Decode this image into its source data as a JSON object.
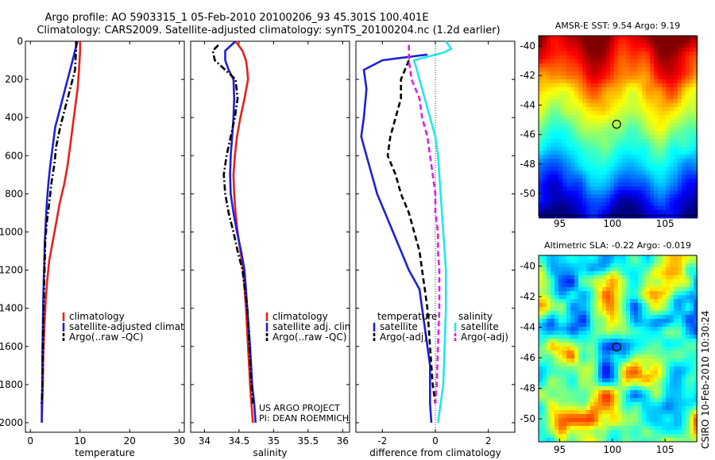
{
  "header": {
    "line1": "Argo profile: AO 5903315_1 05-Feb-2010 20100206_93 45.301S 100.401E",
    "line2": "Climatology: CARS2009. Satellite-adjusted climatology: synTS_20100204.nc (1.2d earlier)"
  },
  "colors": {
    "climatology": "#e8201c",
    "satellite": "#1f1fd6",
    "argo": "#000000",
    "satellite_diff": "#22e6ee",
    "argo_adj": "#e020e0"
  },
  "footer": {
    "project": "US ARGO PROJECT",
    "pi": "PI: DEAN ROEMMICH",
    "stamp": "CSIRO 10-Feb-2010 10:30:24"
  },
  "chart_data": [
    {
      "type": "line",
      "xlabel": "temperature",
      "ylabel": "",
      "xlim": [
        -1,
        31
      ],
      "ylim": [
        2050,
        0
      ],
      "xticks": [
        "0",
        "10",
        "20",
        "30"
      ],
      "yticks": [
        "0",
        "200",
        "400",
        "600",
        "800",
        "1000",
        "1200",
        "1400",
        "1600",
        "1800",
        "2000"
      ],
      "legend": [
        "climatology",
        "satellite-adjusted climatology",
        "Argo(..raw -QC)"
      ],
      "series": [
        {
          "name": "climatology",
          "color": "climatology",
          "style": "solid",
          "x": [
            10,
            10,
            9.8,
            9.5,
            9,
            8.5,
            8.0,
            7.5,
            6.8,
            5.9,
            5.2,
            4.5,
            3.8,
            3.4,
            3.1,
            2.8,
            2.6,
            2.5,
            2.4,
            2.3
          ],
          "y": [
            0,
            50,
            150,
            250,
            350,
            450,
            550,
            650,
            750,
            850,
            950,
            1050,
            1150,
            1250,
            1350,
            1500,
            1650,
            1800,
            1900,
            2000
          ]
        },
        {
          "name": "satellite-adjusted climatology",
          "color": "satellite",
          "style": "solid",
          "x": [
            9.5,
            9,
            8,
            7,
            6,
            5,
            4.5,
            4,
            3.6,
            3.3,
            3.1,
            2.9,
            2.8,
            2.7,
            2.6,
            2.5,
            2.4,
            2.4,
            2.3,
            2.3
          ],
          "y": [
            0,
            50,
            150,
            250,
            350,
            450,
            550,
            650,
            750,
            850,
            950,
            1050,
            1150,
            1250,
            1350,
            1500,
            1650,
            1800,
            1900,
            2000
          ]
        },
        {
          "name": "Argo(..raw -QC)",
          "color": "argo",
          "style": "dashdot",
          "x": [
            9.2,
            9.2,
            9,
            8,
            7,
            6,
            5.2,
            4.8,
            4.2,
            3.8,
            3.3,
            3,
            2.9,
            2.8,
            2.7,
            2.6,
            2.5,
            2.4,
            2.3
          ],
          "y": [
            0,
            40,
            150,
            250,
            350,
            450,
            550,
            650,
            750,
            850,
            950,
            1050,
            1150,
            1250,
            1350,
            1500,
            1650,
            1800,
            1900
          ]
        }
      ]
    },
    {
      "type": "line",
      "xlabel": "salinity",
      "ylabel": "",
      "xlim": [
        33.8,
        36.1
      ],
      "ylim": [
        2050,
        0
      ],
      "xticks": [
        "34",
        "34.5",
        "35",
        "35.5",
        "36"
      ],
      "legend": [
        "climatology",
        "satellite adj. clim.",
        "Argo(..raw -QC)"
      ],
      "series": [
        {
          "name": "climatology",
          "color": "climatology",
          "style": "solid",
          "x": [
            34.45,
            34.55,
            34.6,
            34.62,
            34.63,
            34.58,
            34.52,
            34.47,
            34.44,
            34.42,
            34.43,
            34.45,
            34.48,
            34.52,
            34.56,
            34.6,
            34.63,
            34.66,
            34.68,
            34.7
          ],
          "y": [
            0,
            50,
            100,
            150,
            200,
            300,
            400,
            500,
            600,
            700,
            800,
            900,
            1000,
            1100,
            1200,
            1400,
            1600,
            1800,
            1900,
            2000
          ]
        },
        {
          "name": "satellite adj. clim.",
          "color": "satellite",
          "style": "solid",
          "x": [
            34.45,
            34.3,
            34.3,
            34.35,
            34.42,
            34.43,
            34.42,
            34.4,
            34.38,
            34.37,
            34.38,
            34.42,
            34.47,
            34.53,
            34.58,
            34.62,
            34.66,
            34.69,
            34.72,
            34.74
          ],
          "y": [
            0,
            50,
            100,
            150,
            200,
            300,
            400,
            500,
            600,
            700,
            800,
            900,
            1000,
            1100,
            1200,
            1400,
            1600,
            1800,
            1900,
            2000
          ]
        },
        {
          "name": "Argo(..raw -QC)",
          "color": "argo",
          "style": "dashdot",
          "x": [
            34.2,
            34.12,
            34.15,
            34.3,
            34.45,
            34.48,
            34.44,
            34.38,
            34.32,
            34.28,
            34.3,
            34.35,
            34.42,
            34.48,
            34.55,
            34.62,
            34.65,
            34.68,
            34.7
          ],
          "y": [
            20,
            50,
            100,
            150,
            200,
            300,
            400,
            500,
            600,
            700,
            800,
            900,
            1000,
            1100,
            1200,
            1400,
            1600,
            1800,
            1900
          ]
        }
      ]
    },
    {
      "type": "line",
      "xlabel": "difference from climatology",
      "ylabel": "",
      "xlim": [
        -3,
        3
      ],
      "ylim": [
        2050,
        0
      ],
      "xticks": [
        "-2",
        "0",
        "2"
      ],
      "legend": [
        "temperature",
        "satellite",
        "Argo(-adj)",
        "salinity",
        "satellite",
        "Argo(-adj)"
      ],
      "series": [
        {
          "name": "satellite",
          "group": "temperature",
          "color": "satellite",
          "style": "solid",
          "x": [
            -0.3,
            -2.0,
            -2.7,
            -2.6,
            -2.7,
            -2.8,
            -2.6,
            -2.4,
            -2.2,
            -1.9,
            -1.6,
            -1.3,
            -1.0,
            -0.6,
            -0.5,
            -0.4,
            -0.2,
            -0.2,
            -0.15
          ],
          "y": [
            70,
            100,
            150,
            250,
            400,
            500,
            600,
            700,
            800,
            900,
            1000,
            1100,
            1200,
            1300,
            1400,
            1500,
            1700,
            1900,
            2000
          ]
        },
        {
          "name": "Argo(-adj)",
          "group": "temperature",
          "color": "argo",
          "style": "dashed",
          "x": [
            -1.0,
            -1.3,
            -1.3,
            -1.5,
            -1.7,
            -1.8,
            -1.5,
            -1.3,
            -1.0,
            -0.8,
            -0.6,
            -0.5,
            -0.4,
            -0.3,
            -0.2,
            -0.1,
            0.0
          ],
          "y": [
            100,
            200,
            300,
            400,
            500,
            600,
            700,
            800,
            900,
            1000,
            1100,
            1200,
            1300,
            1400,
            1600,
            1800,
            1900
          ]
        },
        {
          "name": "satellite",
          "group": "salinity",
          "color": "satellite_diff",
          "style": "solid",
          "x": [
            0.4,
            0.6,
            0.3,
            -0.8,
            -0.6,
            -0.4,
            -0.2,
            0.0,
            0.1,
            0.15,
            0.2,
            0.25,
            0.3,
            0.35,
            0.4,
            0.4,
            0.35,
            0.3,
            0.2,
            0.1
          ],
          "y": [
            0,
            40,
            60,
            100,
            200,
            300,
            400,
            500,
            600,
            700,
            800,
            900,
            1000,
            1100,
            1200,
            1400,
            1600,
            1800,
            1900,
            2000
          ]
        },
        {
          "name": "Argo(-adj)",
          "group": "salinity",
          "color": "argo_adj",
          "style": "dashed",
          "x": [
            -1.0,
            -1.0,
            -0.9,
            -0.6,
            -0.5,
            -0.3,
            -0.2,
            -0.1,
            0.0,
            0.0,
            0.1,
            0.1,
            0.15,
            0.15,
            0.1,
            0.05,
            0.0
          ],
          "y": [
            20,
            100,
            200,
            300,
            400,
            500,
            600,
            700,
            800,
            900,
            1000,
            1100,
            1200,
            1400,
            1600,
            1800,
            1900
          ]
        }
      ]
    },
    {
      "type": "heatmap",
      "title": "AMSR-E SST: 9.54 Argo: 9.19",
      "xticks": [
        "95",
        "100",
        "105"
      ],
      "yticks": [
        "-40",
        "-42",
        "-44",
        "-46",
        "-48",
        "-50"
      ],
      "xlim": [
        93,
        108
      ],
      "ylim": [
        -51.5,
        -39.3
      ],
      "marker": {
        "lon": 100.4,
        "lat": -45.3
      }
    },
    {
      "type": "heatmap",
      "title": "Altimetric SLA: -0.22 Argo: -0.019",
      "xticks": [
        "95",
        "100",
        "105"
      ],
      "yticks": [
        "-40",
        "-42",
        "-44",
        "-46",
        "-48",
        "-50"
      ],
      "xlim": [
        93,
        108
      ],
      "ylim": [
        -51.5,
        -39.3
      ],
      "marker": {
        "lon": 100.4,
        "lat": -45.3
      }
    }
  ]
}
